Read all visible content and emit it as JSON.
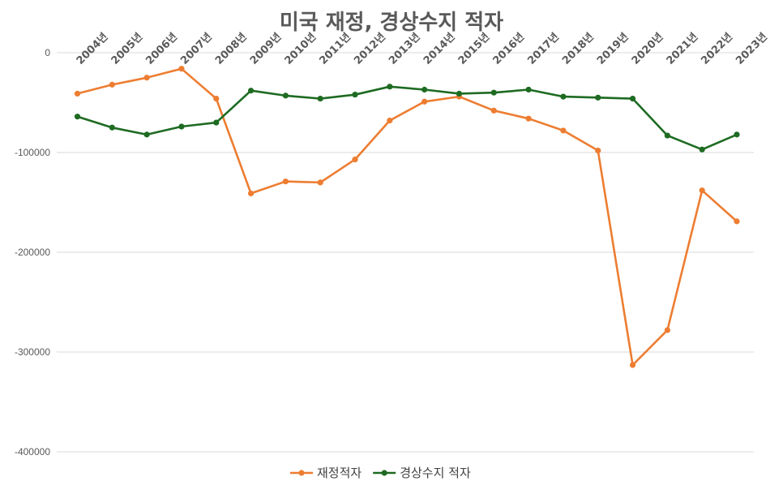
{
  "chart_data": {
    "type": "line",
    "title": "미국 재정, 경상수지 적자",
    "categories": [
      "2004년",
      "2005년",
      "2006년",
      "2007년",
      "2008년",
      "2009년",
      "2010년",
      "2011년",
      "2012년",
      "2013년",
      "2014년",
      "2015년",
      "2016년",
      "2017년",
      "2018년",
      "2019년",
      "2020년",
      "2021년",
      "2022년",
      "2023년"
    ],
    "series": [
      {
        "name": "재정적자",
        "color": "#ed7d31",
        "values": [
          -41000,
          -32000,
          -25000,
          -16000,
          -46000,
          -141000,
          -129000,
          -130000,
          -107000,
          -68000,
          -49000,
          -44000,
          -58000,
          -66000,
          -78000,
          -98000,
          -313000,
          -278000,
          -138000,
          -169000
        ]
      },
      {
        "name": "경상수지 적자",
        "color": "#1e6b22",
        "values": [
          -64000,
          -75000,
          -82000,
          -74000,
          -70000,
          -38000,
          -43000,
          -46000,
          -42000,
          -34000,
          -37000,
          -41000,
          -40000,
          -37000,
          -44000,
          -45000,
          -46000,
          -83000,
          -97000,
          -82000
        ]
      }
    ],
    "y_ticks": [
      0,
      -100000,
      -200000,
      -300000,
      -400000
    ],
    "ylim": [
      -400000,
      0
    ],
    "grid": true,
    "legend_position": "bottom"
  }
}
